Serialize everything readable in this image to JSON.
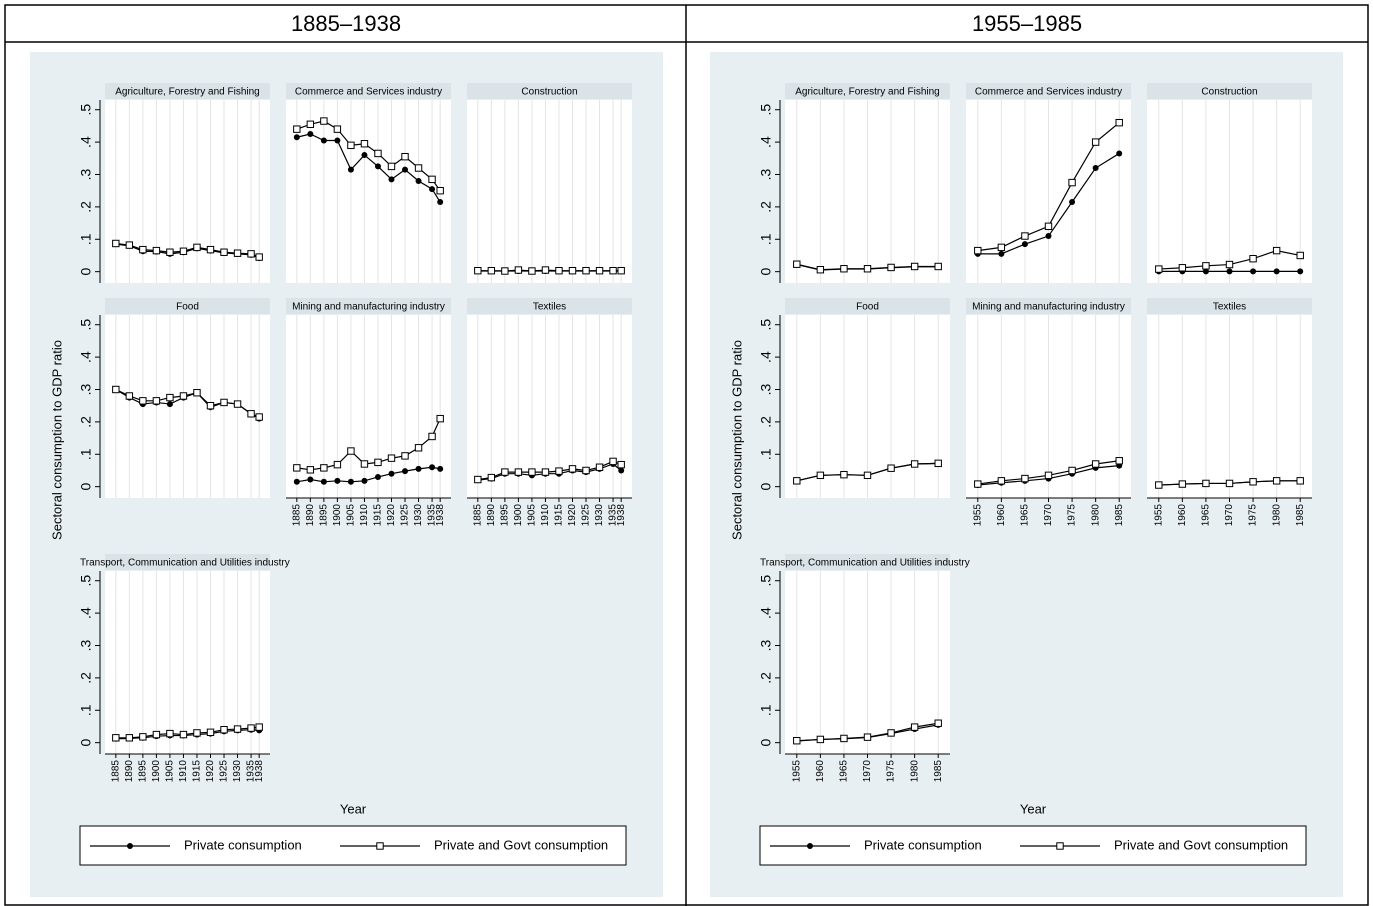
{
  "table": {
    "headers": [
      "1885–1938",
      "1955–1985"
    ]
  },
  "chart_data": [
    {
      "type": "line",
      "ylabel": "Sectoral consumption to GDP ratio",
      "xlabel": "Year",
      "x": [
        1885,
        1890,
        1895,
        1900,
        1905,
        1910,
        1915,
        1920,
        1925,
        1930,
        1935,
        1938
      ],
      "xticks": [
        1885,
        1890,
        1895,
        1900,
        1905,
        1910,
        1915,
        1920,
        1925,
        1930,
        1935,
        1938
      ],
      "xlim": [
        1881,
        1942
      ],
      "ylim": [
        -0.035,
        0.53
      ],
      "yticks": [
        0,
        {
          "value": 0.1,
          "label": ".1"
        },
        {
          "value": 0.2,
          "label": ".2"
        },
        {
          "value": 0.3,
          "label": ".3"
        },
        {
          "value": 0.4,
          "label": ".4"
        },
        {
          "value": 0.5,
          "label": ".5"
        }
      ],
      "grid": "x",
      "series": [
        {
          "name": "Private consumption",
          "marker": "filled-circle",
          "color": "#000000"
        },
        {
          "name": "Private and Govt consumption",
          "marker": "hollow-square",
          "color": "#000000"
        }
      ],
      "panels": [
        {
          "title": "Agriculture, Forestry and Fishing",
          "values": [
            [
              0.085,
              0.08,
              0.063,
              0.062,
              0.055,
              0.06,
              0.072,
              0.065,
              0.058,
              0.055,
              0.052,
              0.042
            ],
            [
              0.087,
              0.082,
              0.068,
              0.065,
              0.06,
              0.063,
              0.075,
              0.068,
              0.06,
              0.057,
              0.055,
              0.045
            ]
          ]
        },
        {
          "title": "Commerce and Services industry",
          "values": [
            [
              0.415,
              0.425,
              0.405,
              0.405,
              0.315,
              0.36,
              0.325,
              0.285,
              0.315,
              0.28,
              0.255,
              0.215
            ],
            [
              0.44,
              0.455,
              0.465,
              0.44,
              0.39,
              0.395,
              0.365,
              0.325,
              0.355,
              0.32,
              0.285,
              0.25
            ]
          ]
        },
        {
          "title": "Construction",
          "values": [
            [
              0.002,
              0.002,
              0.002,
              0.002,
              0.002,
              0.002,
              0.002,
              0.002,
              0.002,
              0.002,
              0.002,
              0.002
            ],
            [
              0.003,
              0.003,
              0.002,
              0.005,
              0.002,
              0.005,
              0.003,
              0.003,
              0.003,
              0.003,
              0.003,
              0.003
            ]
          ]
        },
        {
          "title": "Food",
          "values": [
            [
              0.3,
              0.275,
              0.255,
              0.26,
              0.255,
              0.275,
              0.29,
              0.245,
              0.26,
              0.255,
              0.225,
              0.21
            ],
            [
              0.3,
              0.28,
              0.265,
              0.265,
              0.275,
              0.28,
              0.29,
              0.25,
              0.26,
              0.255,
              0.225,
              0.215
            ]
          ]
        },
        {
          "title": "Mining and manufacturing industry",
          "values": [
            [
              0.015,
              0.022,
              0.015,
              0.018,
              0.015,
              0.018,
              0.03,
              0.04,
              0.048,
              0.055,
              0.06,
              0.055
            ],
            [
              0.058,
              0.052,
              0.058,
              0.068,
              0.11,
              0.07,
              0.075,
              0.088,
              0.095,
              0.12,
              0.155,
              0.21
            ]
          ]
        },
        {
          "title": "Textiles",
          "values": [
            [
              0.02,
              0.025,
              0.04,
              0.04,
              0.035,
              0.04,
              0.04,
              0.05,
              0.045,
              0.055,
              0.07,
              0.05
            ],
            [
              0.022,
              0.028,
              0.045,
              0.045,
              0.045,
              0.045,
              0.048,
              0.055,
              0.05,
              0.06,
              0.078,
              0.068
            ]
          ]
        },
        {
          "title": "Transport, Communication and Utilities industry",
          "values": [
            [
              0.012,
              0.013,
              0.015,
              0.02,
              0.022,
              0.022,
              0.025,
              0.028,
              0.035,
              0.038,
              0.04,
              0.038
            ],
            [
              0.015,
              0.015,
              0.018,
              0.025,
              0.028,
              0.025,
              0.03,
              0.032,
              0.04,
              0.042,
              0.045,
              0.048
            ]
          ]
        }
      ]
    },
    {
      "type": "line",
      "ylabel": "Sectoral consumption to GDP ratio",
      "xlabel": "Year",
      "x": [
        1955,
        1960,
        1965,
        1970,
        1975,
        1980,
        1985
      ],
      "xticks": [
        1955,
        1960,
        1965,
        1970,
        1975,
        1980,
        1985
      ],
      "xlim": [
        1952.5,
        1987.5
      ],
      "ylim": [
        -0.035,
        0.53
      ],
      "yticks": [
        0,
        {
          "value": 0.1,
          "label": ".1"
        },
        {
          "value": 0.2,
          "label": ".2"
        },
        {
          "value": 0.3,
          "label": ".3"
        },
        {
          "value": 0.4,
          "label": ".4"
        },
        {
          "value": 0.5,
          "label": ".5"
        }
      ],
      "grid": "x",
      "series": [
        {
          "name": "Private consumption",
          "marker": "filled-circle",
          "color": "#000000"
        },
        {
          "name": "Private and Govt consumption",
          "marker": "hollow-square",
          "color": "#000000"
        }
      ],
      "panels": [
        {
          "title": "Agriculture, Forestry and Fishing",
          "values": [
            [
              0.022,
              0.005,
              0.008,
              0.008,
              0.012,
              0.015,
              0.015
            ],
            [
              0.023,
              0.006,
              0.009,
              0.009,
              0.013,
              0.016,
              0.016
            ]
          ]
        },
        {
          "title": "Commerce and Services industry",
          "values": [
            [
              0.055,
              0.055,
              0.085,
              0.11,
              0.215,
              0.32,
              0.365
            ],
            [
              0.065,
              0.075,
              0.11,
              0.14,
              0.275,
              0.4,
              0.46
            ]
          ]
        },
        {
          "title": "Construction",
          "values": [
            [
              0.001,
              0.001,
              0.001,
              0.001,
              0.001,
              0.001,
              0.001
            ],
            [
              0.008,
              0.012,
              0.018,
              0.022,
              0.04,
              0.065,
              0.05
            ]
          ]
        },
        {
          "title": "Food",
          "values": [
            [
              0.018,
              0.035,
              0.037,
              0.035,
              0.057,
              0.07,
              0.072
            ],
            [
              0.018,
              0.035,
              0.037,
              0.035,
              0.057,
              0.07,
              0.072
            ]
          ]
        },
        {
          "title": "Mining and manufacturing industry",
          "values": [
            [
              0.005,
              0.012,
              0.018,
              0.025,
              0.04,
              0.058,
              0.065
            ],
            [
              0.008,
              0.018,
              0.025,
              0.035,
              0.05,
              0.07,
              0.08
            ]
          ]
        },
        {
          "title": "Textiles",
          "values": [
            [
              0.005,
              0.008,
              0.01,
              0.01,
              0.015,
              0.018,
              0.018
            ],
            [
              0.005,
              0.008,
              0.01,
              0.01,
              0.015,
              0.018,
              0.018
            ]
          ]
        },
        {
          "title": "Transport, Communication and Utilities industry",
          "values": [
            [
              0.005,
              0.01,
              0.012,
              0.016,
              0.028,
              0.042,
              0.055
            ],
            [
              0.006,
              0.01,
              0.013,
              0.017,
              0.03,
              0.048,
              0.06
            ]
          ]
        }
      ]
    }
  ]
}
